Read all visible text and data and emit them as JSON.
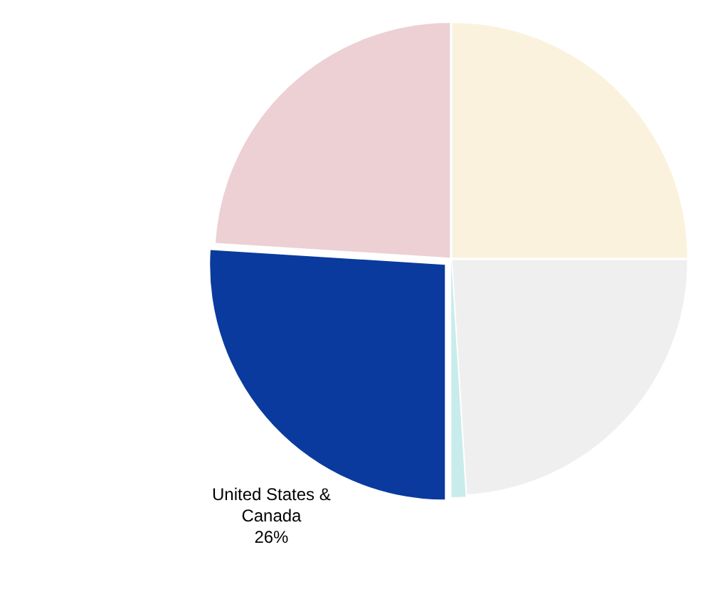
{
  "chart_data": {
    "type": "pie",
    "categories": [
      null,
      null,
      null,
      "United States & Canada",
      null
    ],
    "values": [
      25,
      24,
      1,
      26,
      24
    ],
    "colors": [
      "#faf2dc",
      "#efefef",
      "#c8ecec",
      "#0a3a9e",
      "#ecd0d4"
    ],
    "value_labels": [
      null,
      null,
      null,
      "26%",
      null
    ],
    "legend": false
  }
}
